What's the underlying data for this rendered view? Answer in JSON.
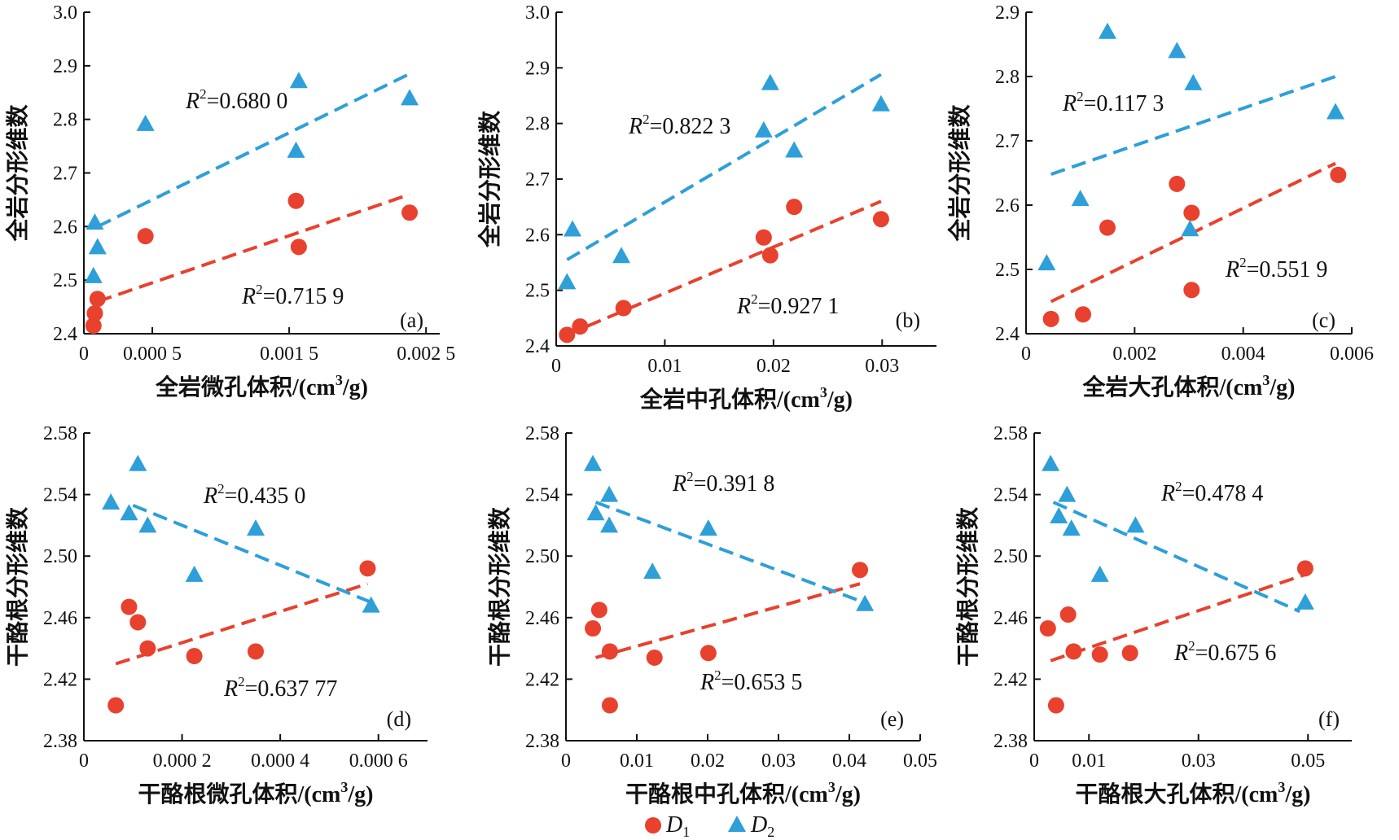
{
  "colors": {
    "d1": "#e8412e",
    "d2": "#2e9fd9"
  },
  "legend": {
    "d1_label": "D",
    "d1_sub": "1",
    "d2_label": "D",
    "d2_sub": "2"
  },
  "chart_data": [
    {
      "type": "scatter",
      "panel_label": "(a)",
      "xlabel": "全岩微孔体积/(cm",
      "xunit_sup": "3",
      "xunit_tail": "/g)",
      "ylabel": "全岩分形维数",
      "xlim": [
        0,
        0.0026
      ],
      "ylim": [
        2.4,
        3.0
      ],
      "xticks": [
        0,
        0.0005,
        0.0015,
        0.0025
      ],
      "xtick_labels": [
        "0",
        "0.000 5",
        "0.001 5",
        "0.002 5"
      ],
      "yticks": [
        2.4,
        2.5,
        2.6,
        2.7,
        2.8,
        2.9,
        3.0
      ],
      "ytick_labels": [
        "2.4",
        "2.5",
        "2.6",
        "2.7",
        "2.8",
        "2.9",
        "3.0"
      ],
      "series": [
        {
          "name": "D1",
          "points": [
            [
              7e-05,
              2.415
            ],
            [
              8e-05,
              2.438
            ],
            [
              0.0001,
              2.465
            ],
            [
              0.00045,
              2.582
            ],
            [
              0.00155,
              2.648
            ],
            [
              0.00157,
              2.562
            ],
            [
              0.00238,
              2.626
            ]
          ]
        },
        {
          "name": "D2",
          "points": [
            [
              7e-05,
              2.508
            ],
            [
              8e-05,
              2.608
            ],
            [
              0.0001,
              2.562
            ],
            [
              0.00045,
              2.792
            ],
            [
              0.00155,
              2.742
            ],
            [
              0.00157,
              2.872
            ],
            [
              0.00238,
              2.84
            ]
          ]
        }
      ],
      "fits": [
        {
          "series": "D1",
          "x": [
            0.0001,
            0.00238
          ],
          "y": [
            2.46,
            2.66
          ],
          "r2_label": "=0.715 9"
        },
        {
          "series": "D2",
          "x": [
            0.0001,
            0.00238
          ],
          "y": [
            2.6,
            2.885
          ],
          "r2_label": "=0.680 0"
        }
      ]
    },
    {
      "type": "scatter",
      "panel_label": "(b)",
      "xlabel": "全岩中孔体积/(cm",
      "xunit_sup": "3",
      "xunit_tail": "/g)",
      "ylabel": "全岩分形维数",
      "xlim": [
        0,
        0.035
      ],
      "ylim": [
        2.4,
        3.0
      ],
      "xticks": [
        0,
        0.01,
        0.02,
        0.03
      ],
      "xtick_labels": [
        "0",
        "0.01",
        "0.02",
        "0.03"
      ],
      "yticks": [
        2.4,
        2.5,
        2.6,
        2.7,
        2.8,
        2.9,
        3.0
      ],
      "ytick_labels": [
        "2.4",
        "2.5",
        "2.6",
        "2.7",
        "2.8",
        "2.9",
        "3.0"
      ],
      "series": [
        {
          "name": "D1",
          "points": [
            [
              0.001,
              2.42
            ],
            [
              0.0022,
              2.435
            ],
            [
              0.0062,
              2.468
            ],
            [
              0.0191,
              2.595
            ],
            [
              0.0197,
              2.563
            ],
            [
              0.0219,
              2.65
            ],
            [
              0.0299,
              2.628
            ]
          ]
        },
        {
          "name": "D2",
          "points": [
            [
              0.001,
              2.515
            ],
            [
              0.0015,
              2.61
            ],
            [
              0.006,
              2.562
            ],
            [
              0.0191,
              2.788
            ],
            [
              0.0197,
              2.873
            ],
            [
              0.0219,
              2.752
            ],
            [
              0.0299,
              2.835
            ]
          ]
        }
      ],
      "fits": [
        {
          "series": "D1",
          "x": [
            0.001,
            0.0299
          ],
          "y": [
            2.42,
            2.66
          ],
          "r2_label": "=0.927 1"
        },
        {
          "series": "D2",
          "x": [
            0.001,
            0.0299
          ],
          "y": [
            2.555,
            2.888
          ],
          "r2_label": "=0.822 3"
        }
      ]
    },
    {
      "type": "scatter",
      "panel_label": "(c)",
      "xlabel": "全岩大孔体积/(cm",
      "xunit_sup": "3",
      "xunit_tail": "/g)",
      "ylabel": "全岩分形维数",
      "xlim": [
        0,
        0.006
      ],
      "ylim": [
        2.4,
        2.9
      ],
      "xticks": [
        0,
        0.002,
        0.004,
        0.006
      ],
      "xtick_labels": [
        "0",
        "0.002",
        "0.004",
        "0.006"
      ],
      "yticks": [
        2.4,
        2.5,
        2.6,
        2.7,
        2.8,
        2.9
      ],
      "ytick_labels": [
        "2.4",
        "2.5",
        "2.6",
        "2.7",
        "2.8",
        "2.9"
      ],
      "series": [
        {
          "name": "D1",
          "points": [
            [
              0.00046,
              2.423
            ],
            [
              0.00105,
              2.43
            ],
            [
              0.0015,
              2.565
            ],
            [
              0.00278,
              2.633
            ],
            [
              0.00305,
              2.588
            ],
            [
              0.00305,
              2.468
            ],
            [
              0.00575,
              2.647
            ]
          ]
        },
        {
          "name": "D2",
          "points": [
            [
              0.00038,
              2.51
            ],
            [
              0.001,
              2.61
            ],
            [
              0.0015,
              2.87
            ],
            [
              0.00278,
              2.84
            ],
            [
              0.00308,
              2.79
            ],
            [
              0.00302,
              2.563
            ],
            [
              0.0057,
              2.745
            ]
          ]
        }
      ],
      "fits": [
        {
          "series": "D1",
          "x": [
            0.00046,
            0.0057
          ],
          "y": [
            2.45,
            2.665
          ],
          "r2_label": "=0.551 9"
        },
        {
          "series": "D2",
          "x": [
            0.00046,
            0.0057
          ],
          "y": [
            2.648,
            2.8
          ],
          "r2_label": "=0.117 3"
        }
      ]
    },
    {
      "type": "scatter",
      "panel_label": "(d)",
      "xlabel": "干酪根微孔体积/(cm",
      "xunit_sup": "3",
      "xunit_tail": "/g)",
      "ylabel": "干酪根分形维数",
      "xlim": [
        0,
        0.0007
      ],
      "ylim": [
        2.38,
        2.58
      ],
      "xticks": [
        0,
        0.0002,
        0.0004,
        0.0006
      ],
      "xtick_labels": [
        "0",
        "0.000 2",
        "0.000 4",
        "0.000 6"
      ],
      "yticks": [
        2.38,
        2.42,
        2.46,
        2.5,
        2.54,
        2.58
      ],
      "ytick_labels": [
        "2.38",
        "2.42",
        "2.46",
        "2.50",
        "2.54",
        "2.58"
      ],
      "series": [
        {
          "name": "D1",
          "points": [
            [
              6.5e-05,
              2.403
            ],
            [
              9.2e-05,
              2.467
            ],
            [
              0.00011,
              2.457
            ],
            [
              0.00013,
              2.44
            ],
            [
              0.000225,
              2.435
            ],
            [
              0.00035,
              2.438
            ],
            [
              0.000578,
              2.492
            ]
          ]
        },
        {
          "name": "D2",
          "points": [
            [
              5.5e-05,
              2.535
            ],
            [
              9.2e-05,
              2.528
            ],
            [
              0.00011,
              2.56
            ],
            [
              0.00013,
              2.52
            ],
            [
              0.000225,
              2.488
            ],
            [
              0.00035,
              2.518
            ],
            [
              0.000585,
              2.468
            ]
          ]
        }
      ],
      "fits": [
        {
          "series": "D1",
          "x": [
            6.5e-05,
            0.000578
          ],
          "y": [
            2.43,
            2.482
          ],
          "r2_label": "=0.637 77"
        },
        {
          "series": "D2",
          "x": [
            0.0001,
            0.000585
          ],
          "y": [
            2.533,
            2.47
          ],
          "r2_label": "=0.435 0"
        }
      ]
    },
    {
      "type": "scatter",
      "panel_label": "(e)",
      "xlabel": "干酪根中孔体积/(cm",
      "xunit_sup": "3",
      "xunit_tail": "/g)",
      "ylabel": "干酪根分形维数",
      "xlim": [
        0,
        0.05
      ],
      "ylim": [
        2.38,
        2.58
      ],
      "xticks": [
        0,
        0.01,
        0.02,
        0.03,
        0.04,
        0.05
      ],
      "xtick_labels": [
        "0",
        "0.01",
        "0.02",
        "0.03",
        "0.04",
        "0.05"
      ],
      "yticks": [
        2.38,
        2.42,
        2.46,
        2.5,
        2.54,
        2.58
      ],
      "ytick_labels": [
        "2.38",
        "2.42",
        "2.46",
        "2.50",
        "2.54",
        "2.58"
      ],
      "series": [
        {
          "name": "D1",
          "points": [
            [
              0.0038,
              2.453
            ],
            [
              0.0047,
              2.465
            ],
            [
              0.0062,
              2.438
            ],
            [
              0.0062,
              2.403
            ],
            [
              0.0125,
              2.434
            ],
            [
              0.0201,
              2.437
            ],
            [
              0.0415,
              2.491
            ]
          ]
        },
        {
          "name": "D2",
          "points": [
            [
              0.0038,
              2.56
            ],
            [
              0.0042,
              2.528
            ],
            [
              0.0061,
              2.54
            ],
            [
              0.0061,
              2.52
            ],
            [
              0.0122,
              2.49
            ],
            [
              0.0201,
              2.518
            ],
            [
              0.0422,
              2.469
            ]
          ]
        }
      ],
      "fits": [
        {
          "series": "D1",
          "x": [
            0.0042,
            0.0415
          ],
          "y": [
            2.434,
            2.482
          ],
          "r2_label": "=0.653 5"
        },
        {
          "series": "D2",
          "x": [
            0.0042,
            0.042
          ],
          "y": [
            2.535,
            2.47
          ],
          "r2_label": "=0.391 8"
        }
      ]
    },
    {
      "type": "scatter",
      "panel_label": "(f)",
      "xlabel": "干酪根大孔体积/(cm",
      "xunit_sup": "3",
      "xunit_tail": "/g)",
      "ylabel": "干酪根分形维数",
      "xlim": [
        0,
        0.058
      ],
      "ylim": [
        2.38,
        2.58
      ],
      "xticks": [
        0,
        0.01,
        0.03,
        0.05
      ],
      "xtick_labels": [
        "0",
        "0.01",
        "0.03",
        "0.05"
      ],
      "yticks": [
        2.38,
        2.42,
        2.46,
        2.5,
        2.54,
        2.58
      ],
      "ytick_labels": [
        "2.38",
        "2.42",
        "2.46",
        "2.50",
        "2.54",
        "2.58"
      ],
      "series": [
        {
          "name": "D1",
          "points": [
            [
              0.0025,
              2.453
            ],
            [
              0.004,
              2.403
            ],
            [
              0.0062,
              2.462
            ],
            [
              0.0072,
              2.438
            ],
            [
              0.012,
              2.436
            ],
            [
              0.0175,
              2.437
            ],
            [
              0.0495,
              2.492
            ]
          ]
        },
        {
          "name": "D2",
          "points": [
            [
              0.003,
              2.56
            ],
            [
              0.0045,
              2.526
            ],
            [
              0.006,
              2.54
            ],
            [
              0.0068,
              2.518
            ],
            [
              0.012,
              2.488
            ],
            [
              0.0185,
              2.52
            ],
            [
              0.0495,
              2.47
            ]
          ]
        }
      ],
      "fits": [
        {
          "series": "D1",
          "x": [
            0.003,
            0.0495
          ],
          "y": [
            2.432,
            2.488
          ],
          "r2_label": "=0.675 6"
        },
        {
          "series": "D2",
          "x": [
            0.0035,
            0.0485
          ],
          "y": [
            2.535,
            2.464
          ],
          "r2_label": "=0.478 4"
        }
      ]
    }
  ]
}
